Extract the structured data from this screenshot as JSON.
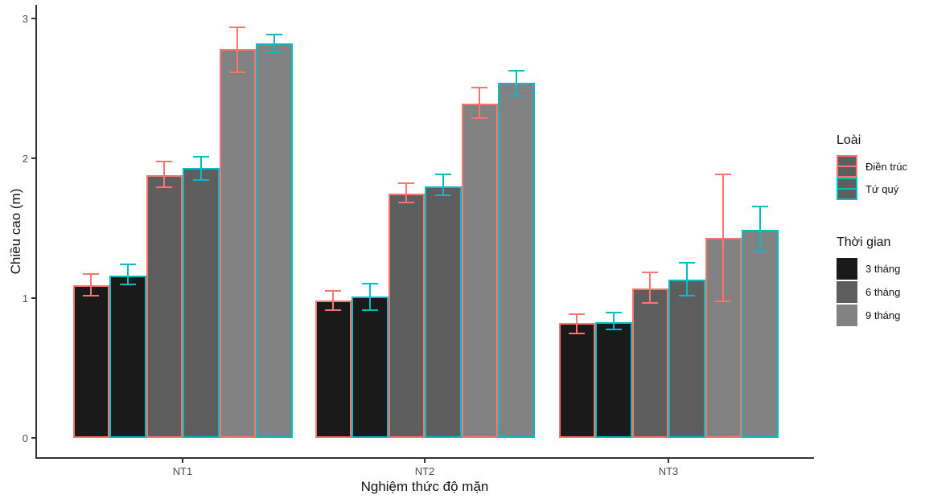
{
  "chart_data": {
    "type": "bar",
    "title": "",
    "xlabel": "Nghiệm thức độ mặn",
    "ylabel": "Chiều cao (m)",
    "ylim": [
      0,
      3
    ],
    "yticks": [
      0,
      1,
      2,
      3
    ],
    "categories": [
      "NT1",
      "NT2",
      "NT3"
    ],
    "grid": "off",
    "legend_position": "right",
    "legend": {
      "species": {
        "title": "Loài",
        "items": [
          {
            "label": "Điền trúc",
            "color": "#F8766D"
          },
          {
            "label": "Tứ quý",
            "color": "#00BFC4"
          }
        ]
      },
      "time": {
        "title": "Thời gian",
        "items": [
          {
            "label": "3 tháng",
            "fill": "#1A1A1A"
          },
          {
            "label": "6 tháng",
            "fill": "#5E5E5E"
          },
          {
            "label": "9 tháng",
            "fill": "#828282"
          }
        ]
      }
    },
    "series": [
      {
        "name": "3 tháng · Điền trúc",
        "time": "3 tháng",
        "species": "Điền trúc",
        "values": [
          1.09,
          0.98,
          0.82
        ],
        "err_lo": [
          1.01,
          0.91,
          0.74
        ],
        "err_hi": [
          1.18,
          1.06,
          0.89
        ]
      },
      {
        "name": "3 tháng · Tứ quý",
        "time": "3 tháng",
        "species": "Tứ quý",
        "values": [
          1.16,
          1.01,
          0.83
        ],
        "err_lo": [
          1.09,
          0.91,
          0.77
        ],
        "err_hi": [
          1.25,
          1.11,
          0.9
        ]
      },
      {
        "name": "6 tháng · Điền trúc",
        "time": "6 tháng",
        "species": "Điền trúc",
        "values": [
          1.88,
          1.75,
          1.07
        ],
        "err_lo": [
          1.79,
          1.68,
          0.96
        ],
        "err_hi": [
          1.98,
          1.83,
          1.19
        ]
      },
      {
        "name": "6 tháng · Tứ quý",
        "time": "6 tháng",
        "species": "Tứ quý",
        "values": [
          1.93,
          1.8,
          1.13
        ],
        "err_lo": [
          1.84,
          1.73,
          1.01
        ],
        "err_hi": [
          2.02,
          1.89,
          1.26
        ]
      },
      {
        "name": "9 tháng · Điền trúc",
        "time": "9 tháng",
        "species": "Điền trúc",
        "values": [
          2.78,
          2.39,
          1.43
        ],
        "err_lo": [
          2.61,
          2.28,
          0.97
        ],
        "err_hi": [
          2.94,
          2.51,
          1.89
        ]
      },
      {
        "name": "9 tháng · Tứ quý",
        "time": "9 tháng",
        "species": "Tứ quý",
        "values": [
          2.82,
          2.54,
          1.49
        ],
        "err_lo": [
          2.75,
          2.44,
          1.33
        ],
        "err_hi": [
          2.89,
          2.63,
          1.66
        ]
      }
    ],
    "colors": {
      "axis": "#333333",
      "tick_text": "#4D4D4D",
      "background": "#FFFFFF"
    }
  }
}
